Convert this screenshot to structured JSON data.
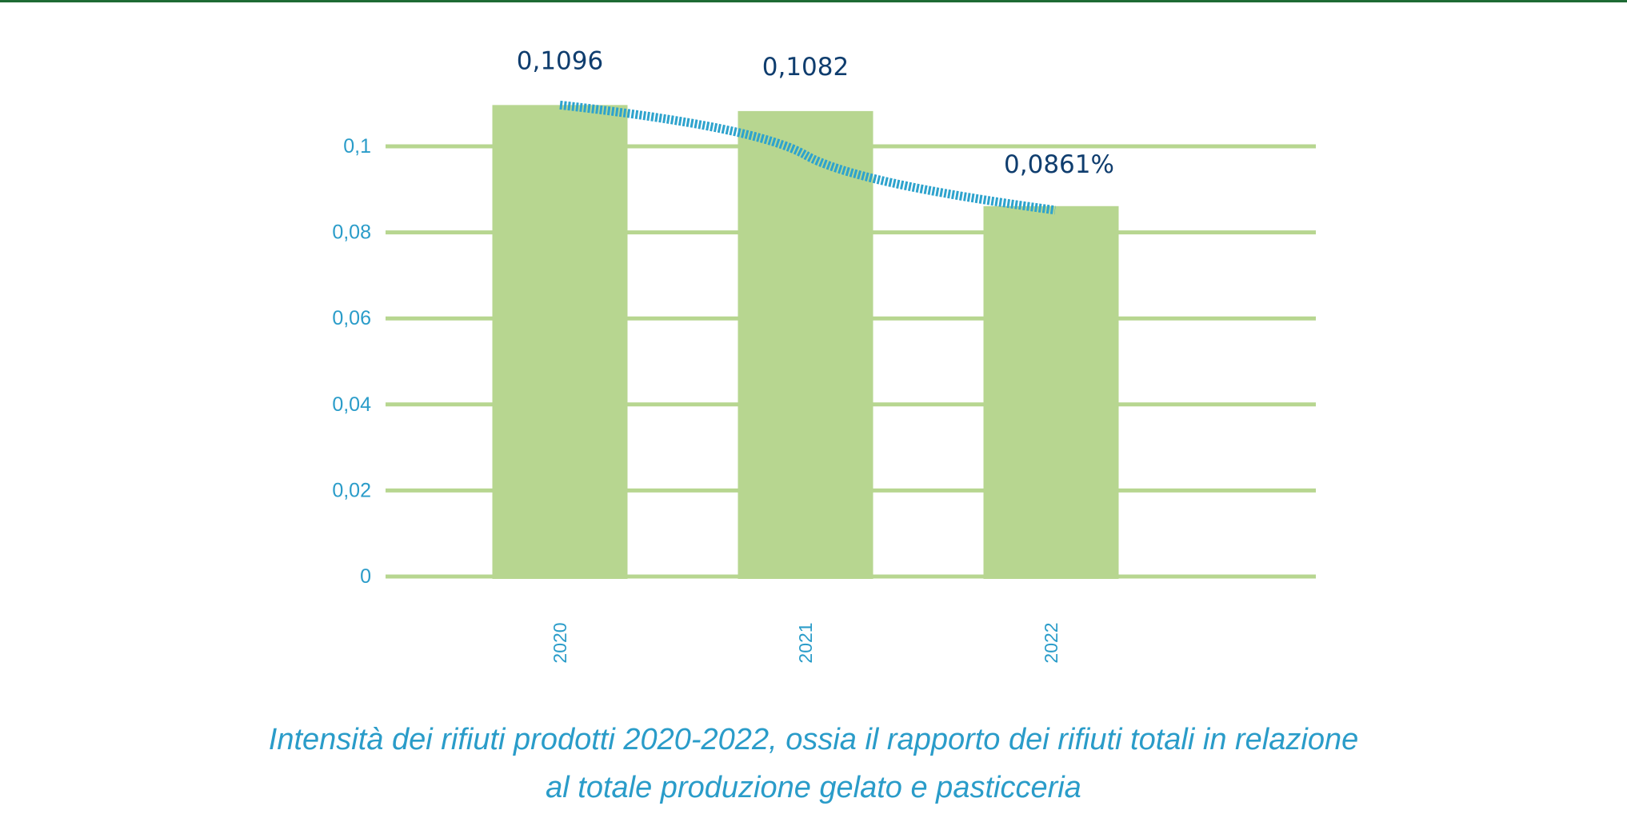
{
  "chart_data": {
    "type": "bar",
    "title": "",
    "categories": [
      "2020",
      "2021",
      "2022"
    ],
    "values": [
      0.1096,
      0.1082,
      0.0861
    ],
    "value_labels": [
      "0,1096",
      "0,1082",
      "0,0861%"
    ],
    "trendline": true,
    "yticks": [
      0,
      0.02,
      0.04,
      0.06,
      0.08,
      0.1
    ],
    "ytick_labels": [
      "0",
      "0,02",
      "0,04",
      "0,06",
      "0,08",
      "0,1"
    ],
    "ylim": [
      0,
      0.1
    ],
    "grid": true,
    "xlabel": "",
    "ylabel": "",
    "colors": {
      "bar": "#b7d690",
      "grid": "#b7d690",
      "trend": "#2ea3cd",
      "labels": "#0f3d6e",
      "ticks": "#2a9cc9"
    }
  },
  "caption": {
    "line1": "Intensità dei rifiuti prodotti 2020-2022, ossia il rapporto dei rifiuti totali in relazione",
    "line2": "al totale produzione gelato e pasticceria"
  }
}
